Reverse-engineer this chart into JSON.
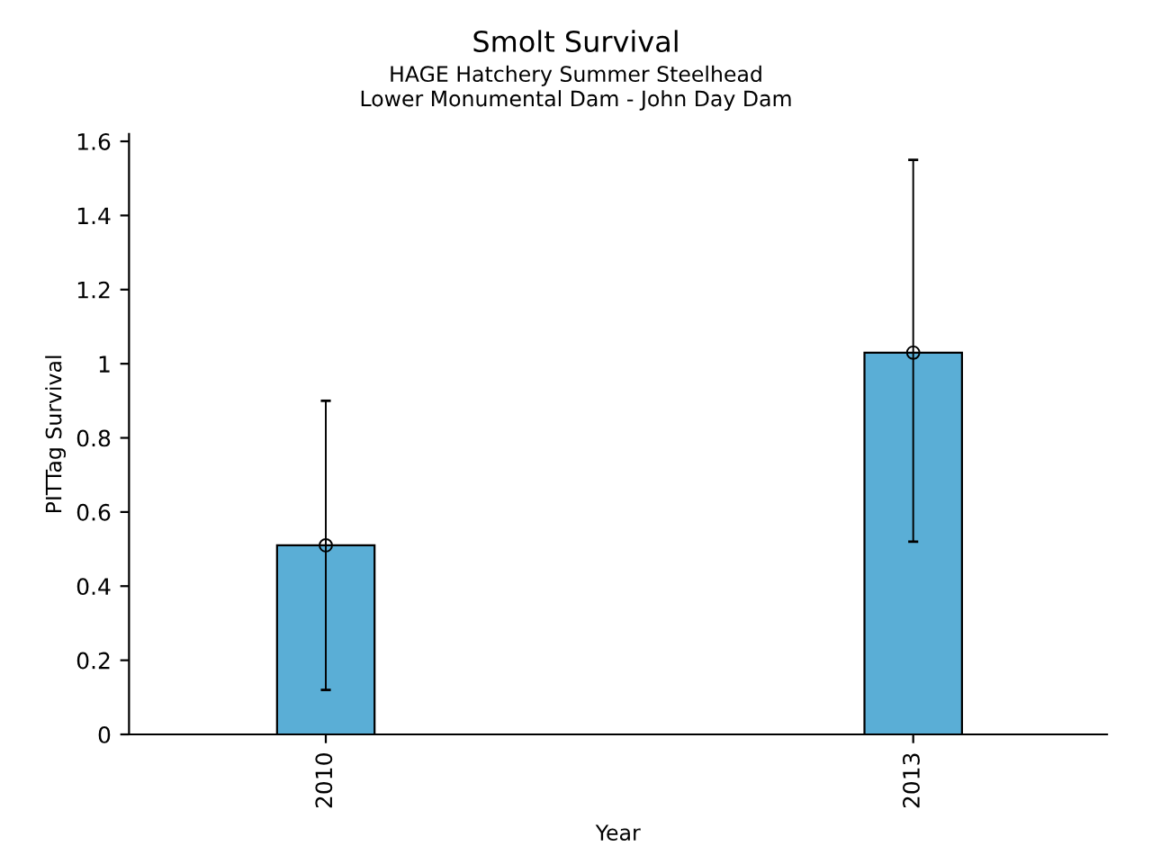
{
  "chart_data": {
    "type": "bar",
    "title": "Smolt Survival",
    "subtitle": "HAGE Hatchery Summer Steelhead\nLower Monumental Dam - John Day Dam",
    "xlabel": "Year",
    "ylabel": "PITTag Survival",
    "categories": [
      "2010",
      "2013"
    ],
    "series": [
      {
        "color": "#5aaed6",
        "values": [
          0.51,
          1.03
        ],
        "errors": [
          [
            0.12,
            0.9
          ],
          [
            0.52,
            1.55
          ]
        ]
      },
      {
        "type": "scatter",
        "color": "#000000",
        "values": [
          0.51,
          1.03
        ]
      }
    ],
    "ylim": [
      0,
      1.62
    ],
    "yticks": [
      0,
      0.2,
      0.4,
      0.6,
      0.8,
      1,
      1.2,
      1.4,
      1.6
    ],
    "marker": "circle",
    "grid": false,
    "legend": false
  }
}
